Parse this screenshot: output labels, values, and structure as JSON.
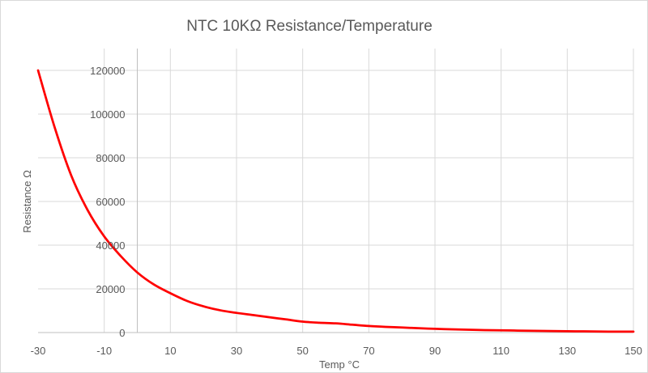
{
  "chart_data": {
    "type": "line",
    "title": "NTC 10KΩ Resistance/Temperature",
    "xlabel": "Temp °C",
    "ylabel": "Resistance Ω",
    "xlim": [
      -30,
      150
    ],
    "ylim": [
      0,
      130000
    ],
    "xticks": [
      -30,
      -10,
      10,
      30,
      50,
      70,
      90,
      110,
      130,
      150
    ],
    "yticks": [
      0,
      20000,
      40000,
      60000,
      80000,
      100000,
      120000
    ],
    "grid": true,
    "legend": "none",
    "colors": {
      "series": "#ff0000",
      "grid": "#d9d9d9",
      "text": "#595959"
    },
    "series": [
      {
        "x": [
          -30,
          -25,
          -20,
          -15,
          -10,
          -5,
          0,
          5,
          10,
          15,
          20,
          25,
          30,
          35,
          40,
          45,
          50,
          55,
          60,
          65,
          70,
          75,
          80,
          85,
          90,
          95,
          100,
          105,
          110,
          115,
          120,
          125,
          130,
          135,
          140,
          145,
          150
        ],
        "values": [
          120000,
          94000,
          72000,
          56000,
          44000,
          35000,
          27500,
          22000,
          18000,
          14500,
          12000,
          10200,
          9000,
          8000,
          7000,
          6000,
          5000,
          4500,
          4200,
          3600,
          3000,
          2600,
          2300,
          2000,
          1700,
          1500,
          1300,
          1100,
          1000,
          900,
          800,
          700,
          600,
          550,
          450,
          400,
          400
        ]
      }
    ]
  }
}
